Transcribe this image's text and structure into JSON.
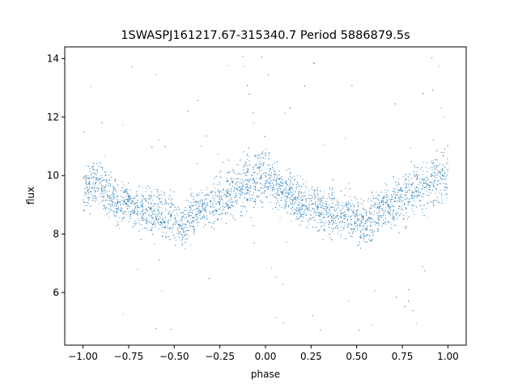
{
  "chart_data": {
    "type": "scatter",
    "title": "1SWASPJ161217.67-315340.7 Period 5886879.5s",
    "xlabel": "phase",
    "ylabel": "flux",
    "xlim": [
      -1.1,
      1.1
    ],
    "ylim": [
      4.2,
      14.4
    ],
    "xticks": [
      -1.0,
      -0.75,
      -0.5,
      -0.25,
      0.0,
      0.25,
      0.5,
      0.75,
      1.0
    ],
    "xtick_labels": [
      "−1.00",
      "−0.75",
      "−0.50",
      "−0.25",
      "0.00",
      "0.25",
      "0.50",
      "0.75",
      "1.00"
    ],
    "yticks": [
      6,
      8,
      10,
      12,
      14
    ],
    "ytick_labels": [
      "6",
      "8",
      "10",
      "12",
      "14"
    ],
    "grid": false,
    "marker_color": "#1f77b4",
    "series": [
      {
        "description_of_trend": "folded light curve repeated over phase -1 to 1; flux highest near phase -1.0, 0.0 and 1.0 (~9.8-10.2), lowest near phase -0.45 and 0.55 (~8.2)",
        "x": [
          -1.0,
          -0.95,
          -0.9,
          -0.85,
          -0.8,
          -0.75,
          -0.7,
          -0.65,
          -0.6,
          -0.55,
          -0.5,
          -0.45,
          -0.4,
          -0.35,
          -0.3,
          -0.25,
          -0.2,
          -0.15,
          -0.1,
          -0.05,
          0.0,
          0.05,
          0.1,
          0.15,
          0.2,
          0.25,
          0.3,
          0.35,
          0.4,
          0.45,
          0.5,
          0.55,
          0.6,
          0.65,
          0.7,
          0.75,
          0.8,
          0.85,
          0.9,
          0.95,
          1.0
        ],
        "y": [
          9.5,
          9.6,
          9.7,
          9.3,
          9.1,
          9.0,
          8.9,
          8.8,
          8.6,
          8.7,
          8.5,
          8.2,
          8.7,
          8.9,
          9.0,
          9.2,
          9.4,
          9.6,
          9.8,
          9.9,
          10.0,
          9.7,
          9.5,
          9.3,
          9.1,
          9.0,
          8.9,
          8.8,
          8.6,
          8.7,
          8.5,
          8.3,
          8.7,
          8.9,
          9.0,
          9.2,
          9.4,
          9.6,
          9.8,
          9.9,
          10.0
        ],
        "spread": [
          0.7,
          0.8,
          0.8,
          0.8,
          0.8,
          0.7,
          0.8,
          0.8,
          0.9,
          0.8,
          0.8,
          0.8,
          0.8,
          0.7,
          0.8,
          0.9,
          0.9,
          0.9,
          1.0,
          1.0,
          1.0,
          0.8,
          0.7,
          0.8,
          0.8,
          0.7,
          0.8,
          0.8,
          0.9,
          0.8,
          0.8,
          0.8,
          0.8,
          0.7,
          0.8,
          0.9,
          0.9,
          0.9,
          1.0,
          1.0,
          1.0
        ]
      }
    ]
  }
}
